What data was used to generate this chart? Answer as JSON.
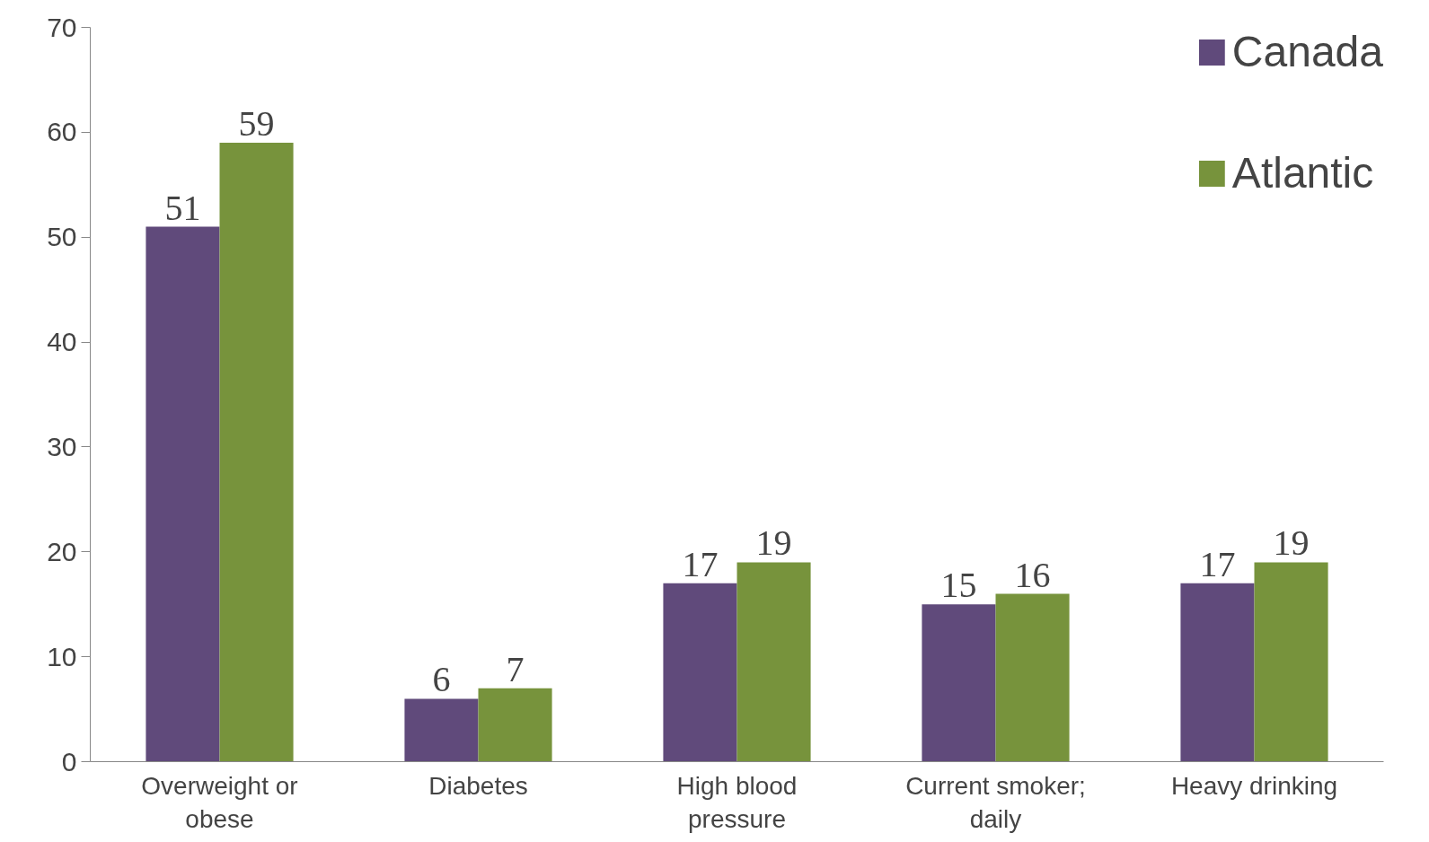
{
  "chart_data": {
    "type": "bar",
    "categories": [
      "Overweight or obese",
      "Diabetes",
      "High blood pressure",
      "Current smoker; daily",
      "Heavy drinking"
    ],
    "series": [
      {
        "name": "Canada",
        "color": "#604a7b",
        "values": [
          51,
          6,
          17,
          15,
          17
        ]
      },
      {
        "name": "Atlantic",
        "color": "#77933c",
        "values": [
          59,
          7,
          19,
          16,
          19
        ]
      }
    ],
    "ylim": [
      0,
      70
    ],
    "yticks": [
      0,
      10,
      20,
      30,
      40,
      50,
      60,
      70
    ],
    "data_labels": true,
    "legend": "top right",
    "grid": false
  }
}
